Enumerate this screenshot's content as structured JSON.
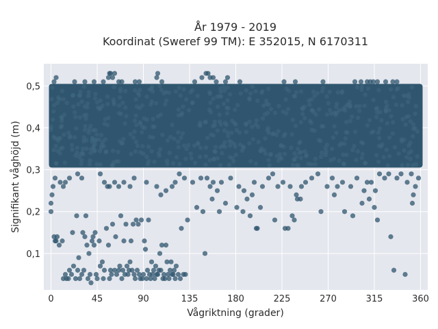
{
  "chart_data": {
    "type": "scatter",
    "title_lines": [
      "År 1979 - 2019",
      "Koordinat (Sweref 99 TM): E 352015, N 6170311"
    ],
    "xlabel": "Vågriktning (grader)",
    "ylabel": "Signifikant våghöjd (m)",
    "xlim": [
      -7,
      367
    ],
    "ylim": [
      0.013,
      0.553
    ],
    "xticks": [
      0,
      45,
      90,
      135,
      180,
      225,
      270,
      315,
      360
    ],
    "xtick_labels": [
      "0",
      "45",
      "90",
      "135",
      "180",
      "225",
      "270",
      "315",
      "360"
    ],
    "yticks": [
      0.1,
      0.2,
      0.3,
      0.4,
      0.5
    ],
    "ytick_labels": [
      "0,1",
      "0,2",
      "0,3",
      "0,4",
      "0,5"
    ],
    "grid": true,
    "legend": "none",
    "marker_color": "#2f566e",
    "background_color": "#e5e7ee",
    "series": [
      {
        "dense_band": {
          "x_range": [
            0,
            360
          ],
          "y_range": [
            0.31,
            0.5
          ]
        },
        "points": [
          [
            0,
            0.2
          ],
          [
            0,
            0.22
          ],
          [
            1,
            0.24
          ],
          [
            2,
            0.26
          ],
          [
            3,
            0.14
          ],
          [
            4,
            0.13
          ],
          [
            5,
            0.13
          ],
          [
            6,
            0.14
          ],
          [
            8,
            0.12
          ],
          [
            11,
            0.13
          ],
          [
            12,
            0.04
          ],
          [
            14,
            0.05
          ],
          [
            15,
            0.04
          ],
          [
            17,
            0.04
          ],
          [
            18,
            0.06
          ],
          [
            20,
            0.05
          ],
          [
            21,
            0.15
          ],
          [
            22,
            0.07
          ],
          [
            24,
            0.04
          ],
          [
            25,
            0.19
          ],
          [
            26,
            0.06
          ],
          [
            27,
            0.09
          ],
          [
            28,
            0.04
          ],
          [
            30,
            0.05
          ],
          [
            31,
            0.15
          ],
          [
            32,
            0.06
          ],
          [
            33,
            0.14
          ],
          [
            34,
            0.19
          ],
          [
            35,
            0.12
          ],
          [
            36,
            0.04
          ],
          [
            37,
            0.1
          ],
          [
            38,
            0.05
          ],
          [
            39,
            0.03
          ],
          [
            40,
            0.13
          ],
          [
            41,
            0.14
          ],
          [
            42,
            0.12
          ],
          [
            43,
            0.15
          ],
          [
            44,
            0.05
          ],
          [
            45,
            0.04
          ],
          [
            47,
            0.13
          ],
          [
            48,
            0.07
          ],
          [
            50,
            0.08
          ],
          [
            51,
            0.04
          ],
          [
            52,
            0.06
          ],
          [
            54,
            0.16
          ],
          [
            56,
            0.12
          ],
          [
            57,
            0.04
          ],
          [
            58,
            0.06
          ],
          [
            59,
            0.05
          ],
          [
            60,
            0.17
          ],
          [
            62,
            0.06
          ],
          [
            63,
            0.14
          ],
          [
            64,
            0.05
          ],
          [
            66,
            0.06
          ],
          [
            67,
            0.07
          ],
          [
            68,
            0.19
          ],
          [
            69,
            0.04
          ],
          [
            70,
            0.06
          ],
          [
            71,
            0.13
          ],
          [
            72,
            0.05
          ],
          [
            73,
            0.17
          ],
          [
            74,
            0.07
          ],
          [
            75,
            0.05
          ],
          [
            76,
            0.06
          ],
          [
            77,
            0.08
          ],
          [
            78,
            0.13
          ],
          [
            79,
            0.06
          ],
          [
            80,
            0.17
          ],
          [
            81,
            0.05
          ],
          [
            82,
            0.04
          ],
          [
            83,
            0.18
          ],
          [
            84,
            0.06
          ],
          [
            85,
            0.17
          ],
          [
            86,
            0.05
          ],
          [
            87,
            0.04
          ],
          [
            88,
            0.18
          ],
          [
            89,
            0.04
          ],
          [
            90,
            0.05
          ],
          [
            91,
            0.13
          ],
          [
            92,
            0.11
          ],
          [
            93,
            0.04
          ],
          [
            94,
            0.06
          ],
          [
            95,
            0.18
          ],
          [
            96,
            0.05
          ],
          [
            97,
            0.04
          ],
          [
            98,
            0.08
          ],
          [
            99,
            0.05
          ],
          [
            100,
            0.06
          ],
          [
            101,
            0.04
          ],
          [
            102,
            0.07
          ],
          [
            103,
            0.05
          ],
          [
            104,
            0.05
          ],
          [
            105,
            0.06
          ],
          [
            106,
            0.1
          ],
          [
            107,
            0.06
          ],
          [
            108,
            0.12
          ],
          [
            109,
            0.04
          ],
          [
            110,
            0.05
          ],
          [
            111,
            0.04
          ],
          [
            112,
            0.12
          ],
          [
            113,
            0.08
          ],
          [
            114,
            0.05
          ],
          [
            115,
            0.04
          ],
          [
            116,
            0.06
          ],
          [
            117,
            0.08
          ],
          [
            118,
            0.05
          ],
          [
            119,
            0.05
          ],
          [
            120,
            0.06
          ],
          [
            121,
            0.04
          ],
          [
            122,
            0.07
          ],
          [
            124,
            0.05
          ],
          [
            126,
            0.04
          ],
          [
            127,
            0.16
          ],
          [
            129,
            0.05
          ],
          [
            131,
            0.05
          ],
          [
            133,
            0.18
          ],
          [
            142,
            0.21
          ],
          [
            148,
            0.2
          ],
          [
            150,
            0.1
          ],
          [
            157,
            0.23
          ],
          [
            164,
            0.2
          ],
          [
            170,
            0.22
          ],
          [
            181,
            0.21
          ],
          [
            187,
            0.2
          ],
          [
            194,
            0.19
          ],
          [
            200,
            0.16
          ],
          [
            201,
            0.16
          ],
          [
            204,
            0.21
          ],
          [
            218,
            0.18
          ],
          [
            228,
            0.16
          ],
          [
            231,
            0.16
          ],
          [
            235,
            0.19
          ],
          [
            237,
            0.18
          ],
          [
            240,
            0.23
          ],
          [
            243,
            0.23
          ],
          [
            263,
            0.2
          ],
          [
            276,
            0.24
          ],
          [
            286,
            0.2
          ],
          [
            294,
            0.19
          ],
          [
            303,
            0.22
          ],
          [
            310,
            0.23
          ],
          [
            315,
            0.21
          ],
          [
            318,
            0.18
          ],
          [
            331,
            0.14
          ],
          [
            334,
            0.06
          ],
          [
            345,
            0.05
          ],
          [
            352,
            0.22
          ],
          [
            353,
            0.24
          ],
          [
            355,
            0.26
          ],
          [
            358,
            0.28
          ],
          [
            4,
            0.28
          ],
          [
            9,
            0.27
          ],
          [
            12,
            0.26
          ],
          [
            14,
            0.27
          ],
          [
            18,
            0.28
          ],
          [
            26,
            0.29
          ],
          [
            30,
            0.28
          ],
          [
            48,
            0.29
          ],
          [
            52,
            0.27
          ],
          [
            55,
            0.26
          ],
          [
            57,
            0.26
          ],
          [
            62,
            0.27
          ],
          [
            66,
            0.26
          ],
          [
            71,
            0.27
          ],
          [
            77,
            0.26
          ],
          [
            81,
            0.28
          ],
          [
            93,
            0.27
          ],
          [
            103,
            0.26
          ],
          [
            107,
            0.24
          ],
          [
            112,
            0.25
          ],
          [
            118,
            0.26
          ],
          [
            121,
            0.27
          ],
          [
            125,
            0.29
          ],
          [
            130,
            0.28
          ],
          [
            138,
            0.27
          ],
          [
            146,
            0.28
          ],
          [
            152,
            0.28
          ],
          [
            155,
            0.26
          ],
          [
            158,
            0.27
          ],
          [
            162,
            0.25
          ],
          [
            166,
            0.27
          ],
          [
            175,
            0.28
          ],
          [
            183,
            0.26
          ],
          [
            188,
            0.25
          ],
          [
            191,
            0.23
          ],
          [
            196,
            0.24
          ],
          [
            198,
            0.27
          ],
          [
            206,
            0.26
          ],
          [
            212,
            0.28
          ],
          [
            216,
            0.29
          ],
          [
            221,
            0.26
          ],
          [
            226,
            0.27
          ],
          [
            233,
            0.26
          ],
          [
            239,
            0.24
          ],
          [
            244,
            0.26
          ],
          [
            248,
            0.27
          ],
          [
            254,
            0.28
          ],
          [
            260,
            0.29
          ],
          [
            269,
            0.26
          ],
          [
            274,
            0.28
          ],
          [
            279,
            0.26
          ],
          [
            284,
            0.27
          ],
          [
            292,
            0.26
          ],
          [
            298,
            0.28
          ],
          [
            305,
            0.25
          ],
          [
            308,
            0.27
          ],
          [
            312,
            0.27
          ],
          [
            316,
            0.25
          ],
          [
            320,
            0.29
          ],
          [
            325,
            0.28
          ],
          [
            329,
            0.29
          ],
          [
            337,
            0.28
          ],
          [
            341,
            0.29
          ],
          [
            347,
            0.27
          ],
          [
            351,
            0.29
          ],
          [
            3,
            0.51
          ],
          [
            5,
            0.52
          ],
          [
            23,
            0.51
          ],
          [
            33,
            0.51
          ],
          [
            42,
            0.51
          ],
          [
            51,
            0.51
          ],
          [
            56,
            0.52
          ],
          [
            57,
            0.53
          ],
          [
            58,
            0.53
          ],
          [
            60,
            0.52
          ],
          [
            62,
            0.53
          ],
          [
            66,
            0.51
          ],
          [
            69,
            0.51
          ],
          [
            82,
            0.51
          ],
          [
            86,
            0.51
          ],
          [
            103,
            0.52
          ],
          [
            104,
            0.53
          ],
          [
            108,
            0.51
          ],
          [
            140,
            0.51
          ],
          [
            147,
            0.52
          ],
          [
            151,
            0.53
          ],
          [
            153,
            0.53
          ],
          [
            155,
            0.52
          ],
          [
            158,
            0.52
          ],
          [
            161,
            0.51
          ],
          [
            170,
            0.51
          ],
          [
            172,
            0.52
          ],
          [
            184,
            0.51
          ],
          [
            227,
            0.51
          ],
          [
            238,
            0.51
          ],
          [
            265,
            0.51
          ],
          [
            296,
            0.51
          ],
          [
            302,
            0.51
          ],
          [
            308,
            0.51
          ],
          [
            311,
            0.51
          ],
          [
            314,
            0.51
          ],
          [
            318,
            0.51
          ],
          [
            326,
            0.51
          ],
          [
            333,
            0.51
          ],
          [
            337,
            0.51
          ]
        ]
      }
    ]
  }
}
